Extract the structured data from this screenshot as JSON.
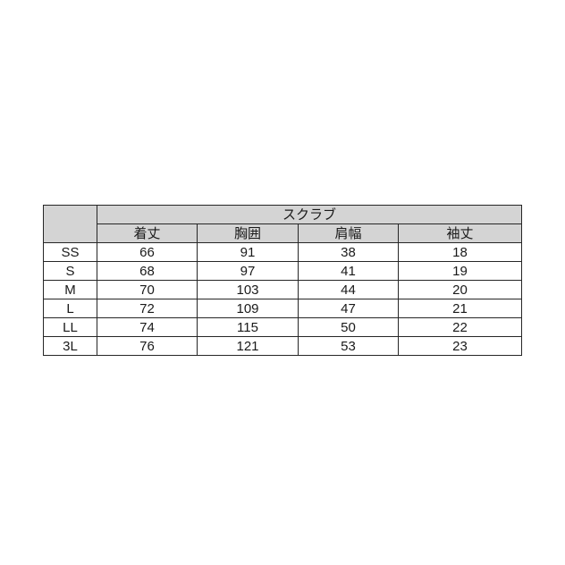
{
  "chart_data": {
    "type": "table",
    "title": "スクラブ",
    "corner_label": "",
    "columns": [
      "着丈",
      "胸囲",
      "肩幅",
      "袖丈"
    ],
    "rows": [
      {
        "size": "SS",
        "values": [
          "66",
          "91",
          "38",
          "18"
        ]
      },
      {
        "size": "S",
        "values": [
          "68",
          "97",
          "41",
          "19"
        ]
      },
      {
        "size": "M",
        "values": [
          "70",
          "103",
          "44",
          "20"
        ]
      },
      {
        "size": "L",
        "values": [
          "72",
          "109",
          "47",
          "21"
        ]
      },
      {
        "size": "LL",
        "values": [
          "74",
          "115",
          "50",
          "22"
        ]
      },
      {
        "size": "3L",
        "values": [
          "76",
          "121",
          "53",
          "23"
        ]
      }
    ]
  },
  "colors": {
    "header_bg": "#d4d4d4",
    "border": "#262626",
    "text": "#1a1a1a",
    "page_bg": "#ffffff"
  }
}
